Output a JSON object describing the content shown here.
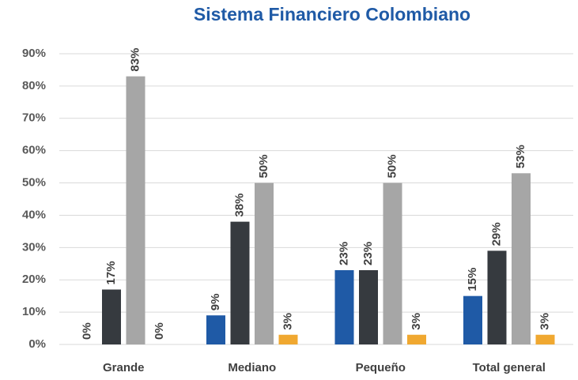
{
  "chart_data": {
    "type": "bar",
    "title": "Sistema Financiero Colombiano",
    "categories": [
      "Grande",
      "Mediano",
      "Pequeño",
      "Total general"
    ],
    "series": [
      {
        "color": "#1f5aa6",
        "values": [
          0,
          9,
          23,
          15
        ],
        "value_labels": [
          "0%",
          "9%",
          "23%",
          "15%"
        ]
      },
      {
        "color": "#363a3f",
        "values": [
          17,
          38,
          23,
          29
        ],
        "value_labels": [
          "17%",
          "38%",
          "23%",
          "29%"
        ]
      },
      {
        "color": "#a6a6a6",
        "values": [
          83,
          50,
          50,
          53
        ],
        "value_labels": [
          "83%",
          "50%",
          "50%",
          "53%"
        ]
      },
      {
        "color": "#f0a830",
        "values": [
          0,
          3,
          3,
          3
        ],
        "value_labels": [
          "0%",
          "3%",
          "3%",
          "3%"
        ]
      }
    ],
    "ylim": [
      0,
      90
    ],
    "yticks": [
      {
        "value": 0,
        "label": "0%"
      },
      {
        "value": 10,
        "label": "10%"
      },
      {
        "value": 20,
        "label": "20%"
      },
      {
        "value": 30,
        "label": "30%"
      },
      {
        "value": 40,
        "label": "40%"
      },
      {
        "value": 50,
        "label": "50%"
      },
      {
        "value": 60,
        "label": "60%"
      },
      {
        "value": 70,
        "label": "70%"
      },
      {
        "value": 80,
        "label": "80%"
      },
      {
        "value": 90,
        "label": "90%"
      }
    ],
    "grid": true
  }
}
